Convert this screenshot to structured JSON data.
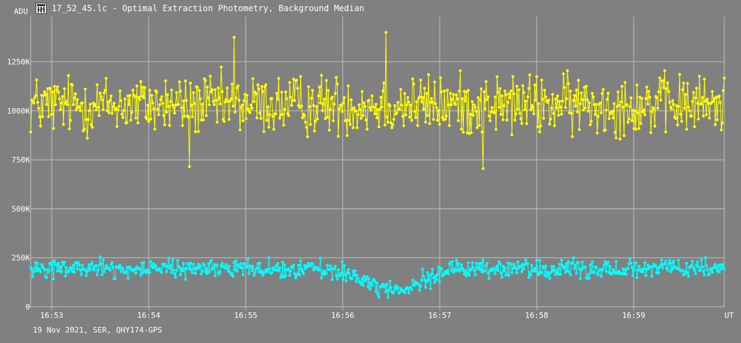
{
  "window": {
    "title": "17_52_45.lc - Optimal Extraction Photometry, Background Median",
    "icon": "lightcurve-app-icon"
  },
  "footer": {
    "caption": "19 Nov 2021, SER, QHY174-GPS"
  },
  "chart_data": {
    "type": "line",
    "xlabel": "UT",
    "ylabel": "ADU",
    "x_range": [
      "16:52:47",
      "16:59:56"
    ],
    "ylim": [
      0,
      1480000
    ],
    "y_ticks": [
      0,
      250000,
      500000,
      750000,
      1000000,
      1250000
    ],
    "y_tick_labels": [
      "0",
      "250K",
      "500K",
      "750K",
      "1000K",
      "1250K"
    ],
    "x_ticks": [
      "16:53",
      "16:54",
      "16:55",
      "16:56",
      "16:57",
      "16:58",
      "16:59"
    ],
    "grid": true,
    "colors": {
      "background": "#808080",
      "grid": "#c0c0c0",
      "text": "#ffffff",
      "signal": "#ffff00",
      "background_series": "#00ffff"
    },
    "series": [
      {
        "color": "#ffff00",
        "style": "line-with-markers",
        "x_start": "16:52:47",
        "x_end": "16:59:56",
        "samples": 700,
        "mean": 1030000,
        "scatter": 100000,
        "min": 705000,
        "max": 1410000,
        "features": [
          {
            "x": "16:54:25",
            "y": 715000
          },
          {
            "x": "16:54:53",
            "y": 1375000
          },
          {
            "x": "16:56:27",
            "y": 1400000
          },
          {
            "x": "16:57:27",
            "y": 705000
          }
        ]
      },
      {
        "color": "#00ffff",
        "style": "line-with-markers",
        "x_start": "16:52:47",
        "x_end": "16:59:56",
        "samples": 700,
        "mean": 195000,
        "scatter": 30000,
        "dip": {
          "start": "16:55:50",
          "min_time": "16:56:30",
          "end": "16:57:15",
          "min_value": 90000
        }
      }
    ]
  }
}
